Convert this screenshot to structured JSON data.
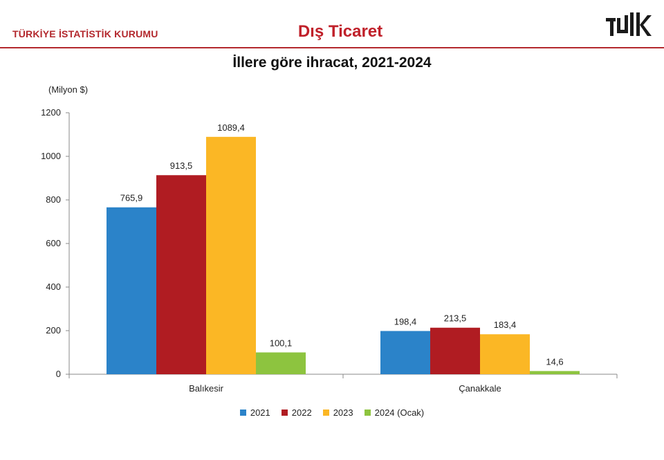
{
  "header": {
    "org": "TÜRKİYE İSTATİSTİK KURUMU",
    "section": "Dış Ticaret",
    "logo_text": "TÜİK"
  },
  "colors": {
    "brand": "#b3282d",
    "series": [
      "#2b83c9",
      "#b01c22",
      "#fbb725",
      "#8dc43f"
    ]
  },
  "chart_data": {
    "type": "bar",
    "title": "İllere göre ihracat, 2021-2024",
    "unit_label": "(Milyon $)",
    "categories": [
      "Balıkesir",
      "Çanakkale"
    ],
    "series": [
      {
        "name": "2021",
        "values": [
          765.9,
          198.4
        ],
        "labels": [
          "765,9",
          "198,4"
        ]
      },
      {
        "name": "2022",
        "values": [
          913.5,
          213.5
        ],
        "labels": [
          "913,5",
          "213,5"
        ]
      },
      {
        "name": "2023",
        "values": [
          1089.4,
          183.4
        ],
        "labels": [
          "1089,4",
          "183,4"
        ]
      },
      {
        "name": "2024 (Ocak)",
        "values": [
          100.1,
          14.6
        ],
        "labels": [
          "100,1",
          "14,6"
        ]
      }
    ],
    "ylim": [
      0,
      1200
    ],
    "yticks": [
      "0",
      "200",
      "400",
      "600",
      "800",
      "1000",
      "1200"
    ],
    "grid": false,
    "legend": "bottom"
  }
}
